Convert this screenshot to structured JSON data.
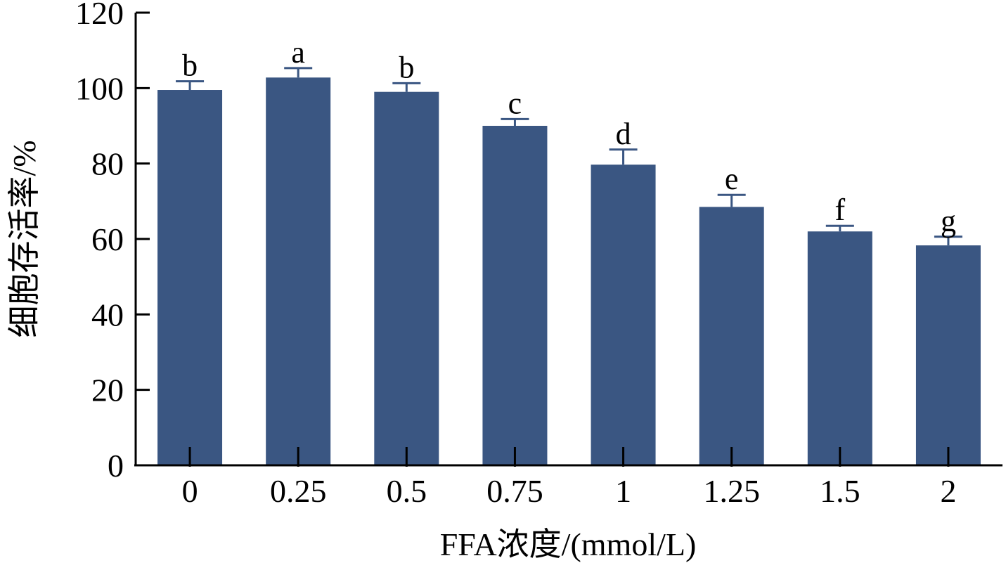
{
  "chart_data": {
    "type": "bar",
    "categories": [
      "0",
      "0.25",
      "0.5",
      "0.75",
      "1",
      "1.25",
      "1.5",
      "2"
    ],
    "values": [
      99.5,
      102.8,
      99.0,
      90.0,
      79.7,
      68.5,
      62.0,
      58.3
    ],
    "errors": [
      2.3,
      2.5,
      2.3,
      1.8,
      4.0,
      3.2,
      1.5,
      2.3
    ],
    "significance": [
      "b",
      "a",
      "b",
      "c",
      "d",
      "e",
      "f",
      "g"
    ],
    "xlabel": "FFA浓度/(mmol/L)",
    "ylabel": "细胞存活率/%",
    "ylim": [
      0,
      120
    ],
    "yticks": [
      "0",
      "20",
      "40",
      "60",
      "80",
      "100",
      "120"
    ],
    "bar_color": "#3a5682",
    "grid": false
  }
}
